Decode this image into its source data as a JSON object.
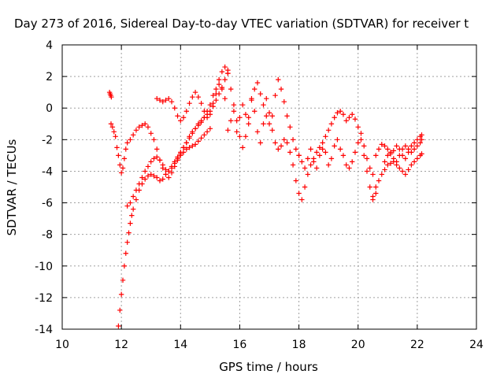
{
  "chart_data": {
    "type": "scatter",
    "title": "Day 273 of 2016, Sidereal Day-to-day VTEC variation (SDTVAR) for receiver t",
    "xlabel": "GPS time / hours",
    "ylabel": "SDTVAR / TECUs",
    "xlim": [
      10,
      24
    ],
    "ylim": [
      -14,
      4
    ],
    "xticks": [
      10,
      12,
      14,
      16,
      18,
      20,
      22,
      24
    ],
    "yticks": [
      -14,
      -12,
      -10,
      -8,
      -6,
      -4,
      -2,
      0,
      2,
      4
    ],
    "grid": true,
    "legend": "none",
    "marker": "plus",
    "color": "#ff0000",
    "series": [
      {
        "x": [
          11.65,
          11.7,
          11.75,
          11.8,
          11.85,
          11.9,
          11.95,
          12.0,
          12.05,
          12.1,
          12.15,
          12.2,
          12.3,
          12.4,
          12.5,
          12.6,
          12.7,
          12.8,
          12.9,
          13.0,
          13.1,
          13.2,
          13.3,
          13.4,
          13.5,
          13.6,
          13.7,
          13.8,
          13.9,
          14.0,
          14.1,
          14.2,
          14.3,
          14.4,
          14.5,
          14.6,
          14.7,
          14.8,
          14.9,
          15.0,
          15.1,
          15.2,
          15.3,
          15.4,
          15.5,
          15.6
        ],
        "y": [
          -1.0,
          -1.2,
          -1.5,
          -1.8,
          -2.5,
          -3.0,
          -3.6,
          -4.1,
          -3.8,
          -3.2,
          -2.6,
          -2.2,
          -2.0,
          -1.7,
          -1.4,
          -1.2,
          -1.1,
          -1.0,
          -1.2,
          -1.6,
          -2.0,
          -2.6,
          -3.3,
          -3.8,
          -4.2,
          -4.4,
          -4.1,
          -3.7,
          -3.3,
          -2.9,
          -2.5,
          -2.2,
          -1.8,
          -1.5,
          -1.3,
          -1.1,
          -0.9,
          -0.6,
          -0.2,
          0.2,
          0.8,
          1.2,
          1.8,
          2.3,
          2.6,
          2.2
        ]
      },
      {
        "x": [
          11.9,
          11.95,
          12.0,
          12.05,
          12.1,
          12.15,
          12.2,
          12.25,
          12.3,
          12.35,
          12.4,
          12.5,
          12.6,
          12.7,
          12.8,
          12.9,
          13.0,
          13.1,
          13.2,
          13.3,
          13.4,
          13.5,
          13.6,
          13.7,
          13.8,
          13.9,
          14.0,
          14.1,
          14.2,
          14.3,
          14.4,
          14.5,
          14.6,
          14.7,
          14.8,
          14.9,
          15.0,
          15.1,
          15.2,
          15.3,
          15.4,
          15.5,
          15.6
        ],
        "y": [
          -13.8,
          -12.8,
          -11.8,
          -10.9,
          -10.0,
          -9.2,
          -8.5,
          -7.9,
          -7.3,
          -6.8,
          -6.4,
          -5.8,
          -5.2,
          -4.8,
          -4.5,
          -4.3,
          -4.2,
          -4.3,
          -4.4,
          -4.6,
          -4.5,
          -4.2,
          -4.0,
          -3.7,
          -3.4,
          -3.1,
          -2.8,
          -2.5,
          -2.2,
          -1.9,
          -1.6,
          -1.3,
          -1.0,
          -0.8,
          -0.6,
          -0.4,
          -0.2,
          0.1,
          0.5,
          0.9,
          1.3,
          1.8,
          2.4
        ]
      },
      {
        "x": [
          12.2,
          12.3,
          12.4,
          12.5,
          12.6,
          12.7,
          12.8,
          12.9,
          13.0,
          13.1,
          13.2,
          13.3,
          13.4,
          13.5,
          13.6,
          13.7,
          13.8,
          13.9,
          14.0,
          14.1,
          14.2,
          14.3,
          14.4,
          14.5,
          14.6,
          14.7,
          14.8,
          14.9,
          15.0
        ],
        "y": [
          -6.2,
          -6.0,
          -5.6,
          -5.2,
          -4.8,
          -4.4,
          -4.0,
          -3.7,
          -3.4,
          -3.2,
          -3.1,
          -3.3,
          -3.6,
          -3.9,
          -4.0,
          -3.8,
          -3.5,
          -3.2,
          -3.0,
          -2.8,
          -2.6,
          -2.5,
          -2.4,
          -2.3,
          -2.1,
          -1.9,
          -1.7,
          -1.5,
          -1.3
        ]
      },
      {
        "x": [
          13.2,
          13.3,
          13.4,
          13.5,
          13.6,
          13.7,
          13.8,
          13.9,
          14.0,
          14.1,
          14.2,
          14.3,
          14.4,
          14.5,
          14.6,
          14.7,
          14.8,
          14.9,
          15.0,
          15.1,
          15.2,
          15.3,
          15.4,
          15.5
        ],
        "y": [
          0.6,
          0.5,
          0.4,
          0.5,
          0.6,
          0.4,
          0.0,
          -0.5,
          -0.8,
          -0.6,
          -0.2,
          0.3,
          0.7,
          1.0,
          0.7,
          0.3,
          -0.2,
          -0.6,
          -0.4,
          0.3,
          0.9,
          1.5,
          1.2,
          0.6
        ]
      },
      {
        "x": [
          11.6,
          11.62,
          11.64,
          11.66
        ],
        "y": [
          1.0,
          0.9,
          0.8,
          0.7
        ]
      },
      {
        "x": [
          15.6,
          15.7,
          15.8,
          15.9,
          16.0,
          16.1,
          16.2,
          16.3,
          16.4,
          16.5,
          16.6,
          16.7,
          16.8,
          16.9,
          17.0,
          17.1,
          17.2,
          17.3,
          17.4,
          17.5,
          17.6,
          17.7,
          17.8,
          17.9,
          18.0
        ],
        "y": [
          2.2,
          1.2,
          0.2,
          -0.8,
          -1.8,
          -2.5,
          -1.8,
          -0.6,
          0.5,
          1.2,
          1.6,
          0.9,
          0.2,
          -0.5,
          -1.0,
          -0.5,
          0.8,
          1.8,
          1.2,
          0.4,
          -0.5,
          -1.2,
          -2.0,
          -2.6,
          -3.0
        ]
      },
      {
        "x": [
          15.6,
          15.7,
          15.8,
          15.9,
          16.0,
          16.1,
          16.2,
          16.3,
          16.4,
          16.5,
          16.6,
          16.7,
          16.8,
          16.9,
          17.0,
          17.1,
          17.2,
          17.3,
          17.4,
          17.5
        ],
        "y": [
          -1.4,
          -0.8,
          -0.2,
          -1.5,
          -0.6,
          0.2,
          -0.4,
          -1.0,
          0.6,
          -0.2,
          -1.5,
          -2.2,
          -1.0,
          0.6,
          -0.3,
          -1.4,
          -2.2,
          -2.6,
          -2.4,
          -2.0
        ]
      },
      {
        "x": [
          17.6,
          17.7,
          17.8,
          17.9,
          18.0,
          18.1,
          18.2,
          18.3,
          18.4,
          18.5,
          18.6,
          18.7,
          18.8,
          18.9,
          19.0,
          19.1,
          19.2,
          19.3,
          19.4,
          19.5,
          19.6,
          19.7,
          19.8,
          19.9,
          20.0,
          20.1,
          20.2,
          20.3,
          20.4,
          20.5,
          20.6
        ],
        "y": [
          -2.2,
          -2.8,
          -3.6,
          -4.6,
          -5.4,
          -5.8,
          -5.0,
          -4.2,
          -3.6,
          -3.2,
          -2.8,
          -2.5,
          -2.2,
          -1.8,
          -1.4,
          -1.0,
          -0.6,
          -0.3,
          -0.2,
          -0.4,
          -0.8,
          -0.6,
          -0.4,
          -0.7,
          -1.2,
          -2.0,
          -3.0,
          -4.0,
          -5.0,
          -5.8,
          -5.4
        ]
      },
      {
        "x": [
          18.0,
          18.1,
          18.2,
          18.3,
          18.4,
          18.5,
          18.6,
          18.7,
          18.8,
          18.9,
          19.0,
          19.1,
          19.2,
          19.3,
          19.4,
          19.5,
          19.6,
          19.7,
          19.8,
          19.9,
          20.0,
          20.1,
          20.2,
          20.3,
          20.4,
          20.5
        ],
        "y": [
          -3.0,
          -3.4,
          -3.8,
          -3.2,
          -2.6,
          -3.4,
          -3.8,
          -3.0,
          -2.6,
          -2.8,
          -3.6,
          -3.2,
          -2.4,
          -2.0,
          -2.6,
          -3.0,
          -3.6,
          -3.8,
          -3.4,
          -2.8,
          -2.2,
          -1.6,
          -2.4,
          -3.2,
          -3.8,
          -4.2
        ]
      },
      {
        "x": [
          20.5,
          20.6,
          20.7,
          20.8,
          20.9,
          21.0,
          21.1,
          21.2,
          21.3,
          21.4,
          21.5,
          21.6,
          21.7,
          21.8,
          21.9,
          22.0,
          22.1,
          22.15
        ],
        "y": [
          -5.6,
          -5.0,
          -4.6,
          -4.2,
          -3.9,
          -3.6,
          -3.5,
          -3.4,
          -3.6,
          -3.8,
          -4.0,
          -4.2,
          -3.9,
          -3.6,
          -3.4,
          -3.2,
          -3.0,
          -2.9
        ]
      },
      {
        "x": [
          20.6,
          20.7,
          20.8,
          20.9,
          21.0,
          21.1,
          21.2,
          21.3,
          21.4,
          21.5,
          21.6,
          21.7,
          21.8,
          21.9,
          22.0,
          22.1,
          22.15
        ],
        "y": [
          -3.0,
          -2.6,
          -2.3,
          -2.4,
          -2.6,
          -2.9,
          -2.7,
          -2.4,
          -2.6,
          -3.0,
          -3.2,
          -2.8,
          -2.4,
          -2.2,
          -2.0,
          -1.8,
          -1.7
        ]
      },
      {
        "x": [
          20.9,
          21.0,
          21.1,
          21.2,
          21.3,
          21.4,
          21.5,
          21.6,
          21.7,
          21.8,
          21.9,
          22.0,
          22.1,
          22.15
        ],
        "y": [
          -3.4,
          -3.0,
          -2.8,
          -3.2,
          -3.4,
          -3.0,
          -2.6,
          -2.4,
          -2.6,
          -2.8,
          -2.6,
          -2.4,
          -2.2,
          -2.0
        ]
      }
    ]
  }
}
